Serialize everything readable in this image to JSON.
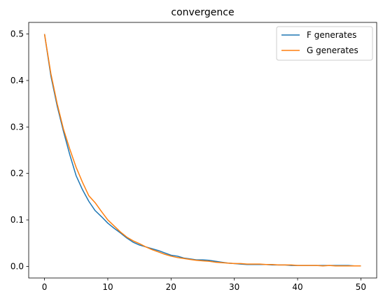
{
  "chart_data": {
    "type": "line",
    "title": "convergence",
    "xlabel": "",
    "ylabel": "",
    "xlim": [
      -2.5,
      52.5
    ],
    "ylim": [
      -0.025,
      0.525
    ],
    "x_ticks": [
      0,
      10,
      20,
      30,
      40,
      50
    ],
    "y_ticks": [
      0.0,
      0.1,
      0.2,
      0.3,
      0.4,
      0.5
    ],
    "x_tick_labels": [
      "0",
      "10",
      "20",
      "30",
      "40",
      "50"
    ],
    "y_tick_labels": [
      "0.0",
      "0.1",
      "0.2",
      "0.3",
      "0.4",
      "0.5"
    ],
    "grid": false,
    "legend_position": "top-right",
    "x": [
      0,
      1,
      2,
      3,
      4,
      5,
      6,
      7,
      8,
      9,
      10,
      11,
      12,
      13,
      14,
      15,
      16,
      17,
      18,
      19,
      20,
      21,
      22,
      23,
      24,
      25,
      26,
      27,
      28,
      29,
      30,
      31,
      32,
      33,
      34,
      35,
      36,
      37,
      38,
      39,
      40,
      41,
      42,
      43,
      44,
      45,
      46,
      47,
      48,
      49,
      50
    ],
    "series": [
      {
        "name": "F generates",
        "color": "#1f77b4",
        "values": [
          0.5,
          0.41,
          0.345,
          0.29,
          0.24,
          0.195,
          0.165,
          0.14,
          0.12,
          0.107,
          0.093,
          0.082,
          0.072,
          0.061,
          0.052,
          0.046,
          0.042,
          0.038,
          0.034,
          0.029,
          0.024,
          0.022,
          0.018,
          0.016,
          0.014,
          0.014,
          0.013,
          0.011,
          0.009,
          0.007,
          0.006,
          0.005,
          0.004,
          0.004,
          0.004,
          0.004,
          0.003,
          0.003,
          0.003,
          0.002,
          0.002,
          0.002,
          0.002,
          0.002,
          0.002,
          0.002,
          0.002,
          0.002,
          0.002,
          0.001,
          0.001
        ]
      },
      {
        "name": "G generates",
        "color": "#ff7f0e",
        "values": [
          0.5,
          0.415,
          0.35,
          0.295,
          0.252,
          0.213,
          0.181,
          0.152,
          0.137,
          0.118,
          0.1,
          0.087,
          0.074,
          0.063,
          0.055,
          0.049,
          0.042,
          0.036,
          0.031,
          0.026,
          0.022,
          0.019,
          0.017,
          0.015,
          0.013,
          0.012,
          0.011,
          0.009,
          0.008,
          0.007,
          0.006,
          0.006,
          0.005,
          0.005,
          0.005,
          0.004,
          0.004,
          0.003,
          0.003,
          0.003,
          0.002,
          0.002,
          0.002,
          0.002,
          0.001,
          0.002,
          0.001,
          0.001,
          0.001,
          0.001,
          0.001
        ]
      }
    ]
  }
}
